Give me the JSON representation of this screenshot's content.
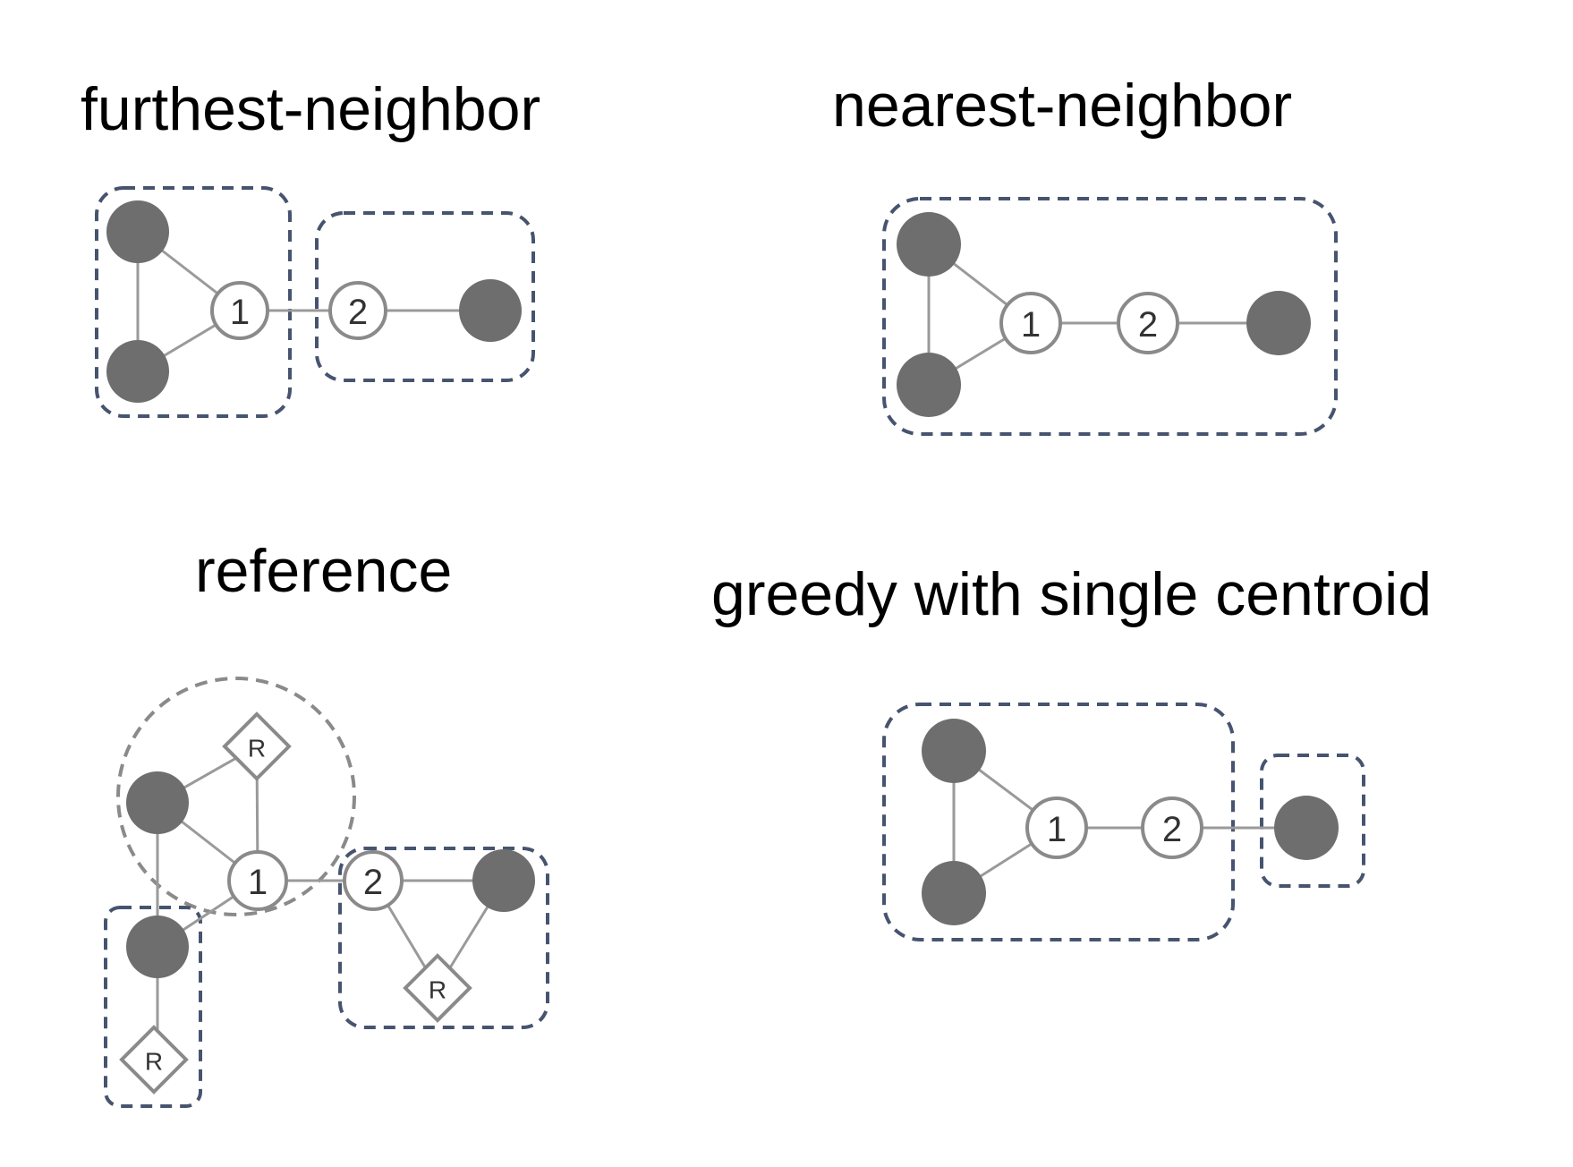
{
  "panels": {
    "furthest": {
      "title": "furthest-neighbor",
      "node1": "1",
      "node2": "2"
    },
    "nearest": {
      "title": "nearest-neighbor",
      "node1": "1",
      "node2": "2"
    },
    "reference": {
      "title": "reference",
      "node1": "1",
      "node2": "2",
      "ref_label": "R"
    },
    "greedy": {
      "title": "greedy with single centroid",
      "node1": "1",
      "node2": "2"
    }
  },
  "colors": {
    "dark_node": "#6e6e6e",
    "cluster_border": "#46546f",
    "edge": "#9a9a9a"
  }
}
